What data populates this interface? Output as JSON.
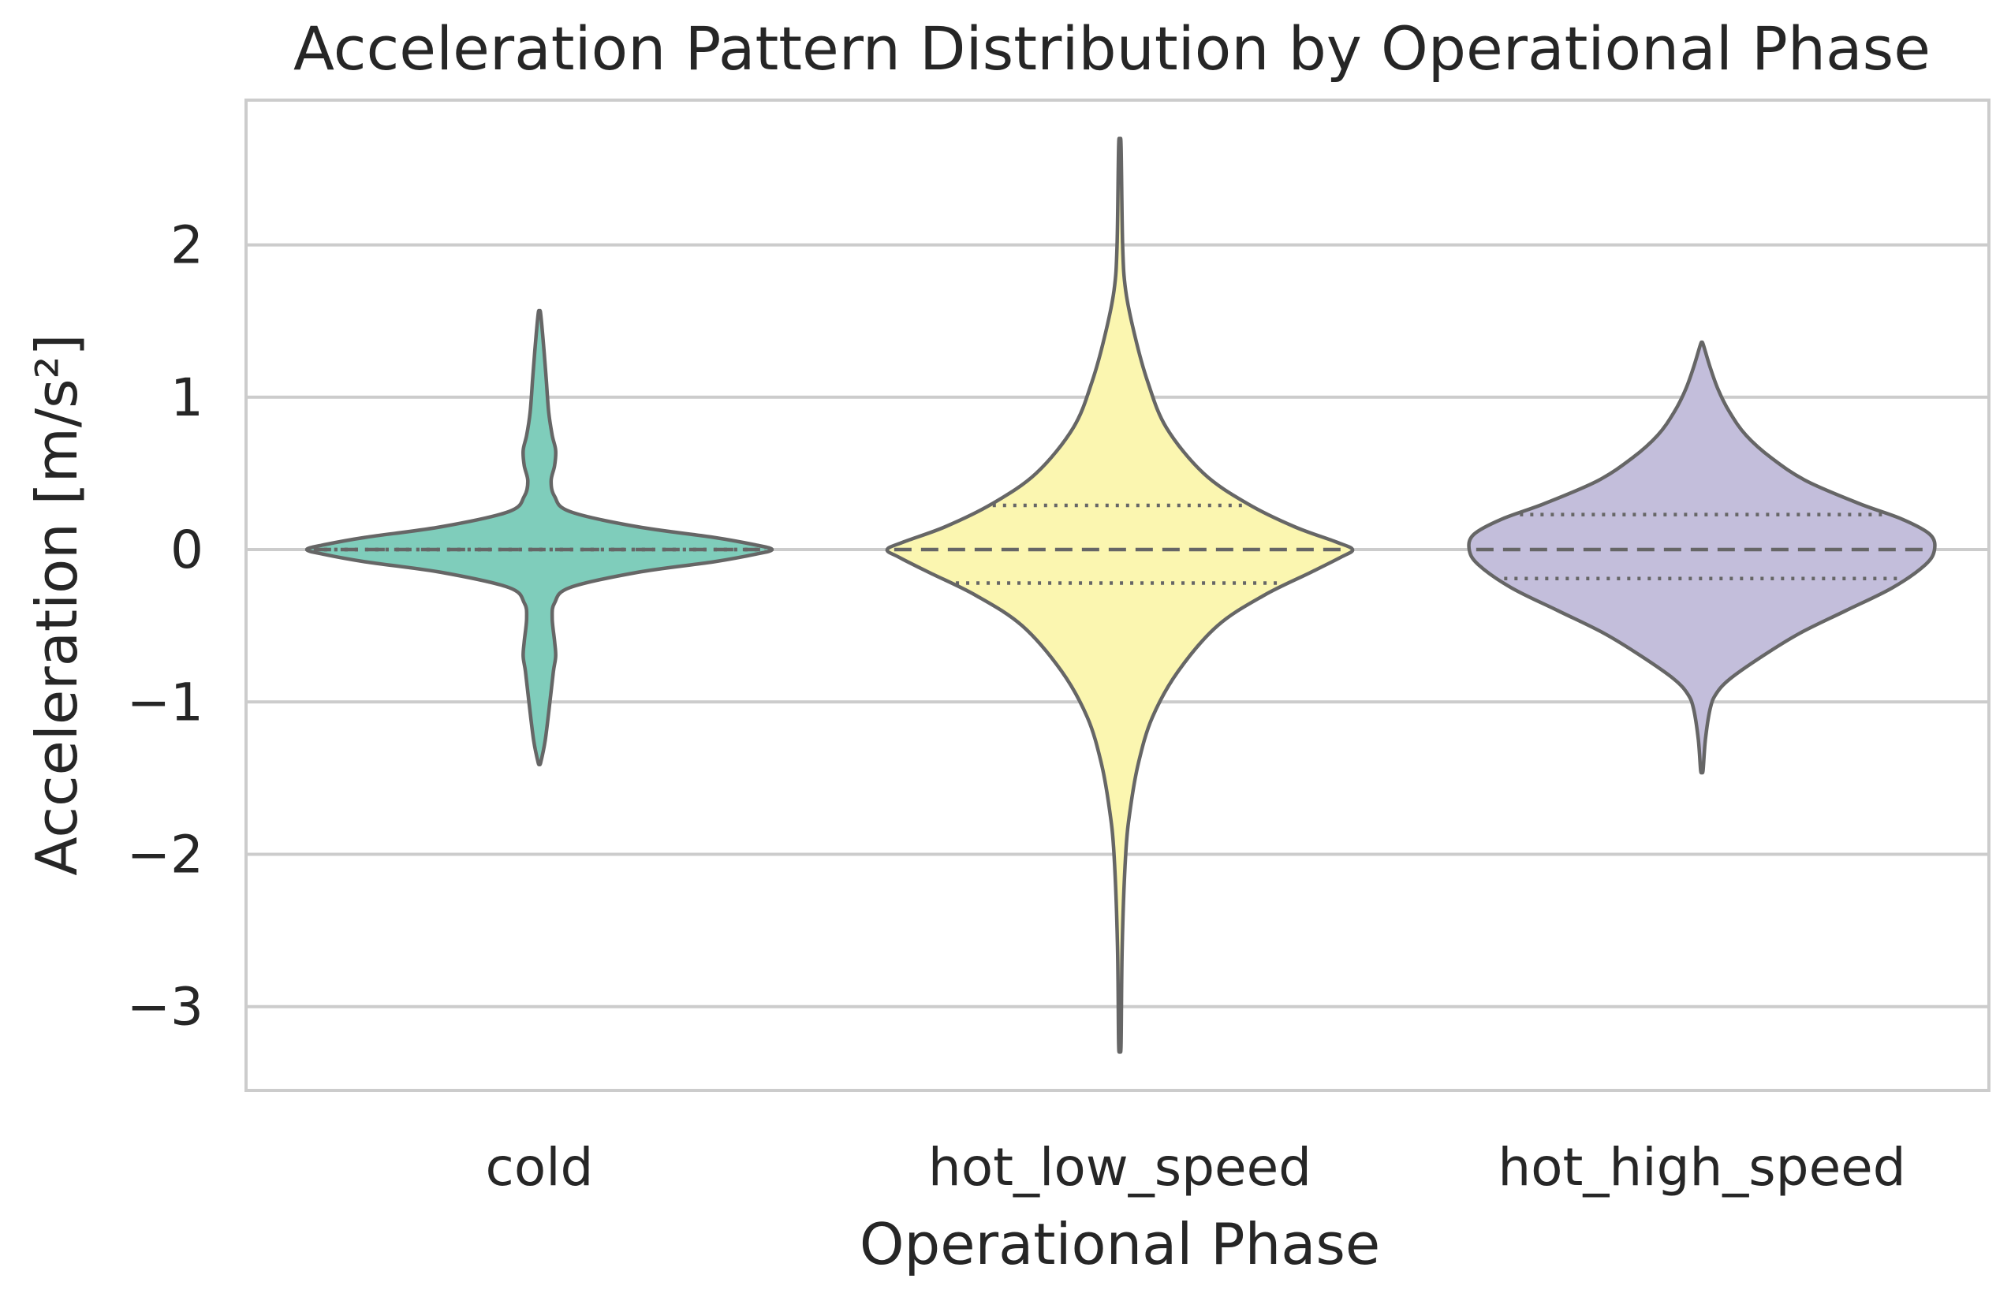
{
  "chart_data": {
    "type": "violin",
    "title": "Acceleration Pattern Distribution by Operational Phase",
    "xlabel": "Operational Phase",
    "ylabel": "Acceleration [m/s²]",
    "categories": [
      "cold",
      "hot_low_speed",
      "hot_high_speed"
    ],
    "ylim": [
      -3.55,
      2.95
    ],
    "yticks": [
      2,
      1,
      0,
      -1,
      -2,
      -3
    ],
    "ytick_labels": [
      "2",
      "1",
      "0",
      "−1",
      "−2",
      "−3"
    ],
    "grid": true,
    "inner": "quartile",
    "colors": [
      "#7fcdbb",
      "#fbf6b0",
      "#c3bedb"
    ],
    "line_color": "#666666",
    "series": [
      {
        "category": "cold",
        "min": -1.4,
        "max": 1.55,
        "q1": 0.0,
        "median": 0.0,
        "q3": 0.0,
        "profile": [
          [
            -1.4,
            0.005
          ],
          [
            -1.25,
            0.025
          ],
          [
            -1.0,
            0.045
          ],
          [
            -0.8,
            0.06
          ],
          [
            -0.7,
            0.07
          ],
          [
            -0.6,
            0.065
          ],
          [
            -0.45,
            0.055
          ],
          [
            -0.35,
            0.065
          ],
          [
            -0.25,
            0.13
          ],
          [
            -0.15,
            0.42
          ],
          [
            -0.08,
            0.75
          ],
          [
            -0.03,
            0.93
          ],
          [
            0.0,
            1.0
          ],
          [
            0.03,
            0.93
          ],
          [
            0.08,
            0.75
          ],
          [
            0.15,
            0.42
          ],
          [
            0.25,
            0.13
          ],
          [
            0.35,
            0.065
          ],
          [
            0.45,
            0.05
          ],
          [
            0.55,
            0.065
          ],
          [
            0.65,
            0.07
          ],
          [
            0.75,
            0.055
          ],
          [
            0.9,
            0.04
          ],
          [
            1.1,
            0.03
          ],
          [
            1.3,
            0.02
          ],
          [
            1.55,
            0.005
          ]
        ]
      },
      {
        "category": "hot_low_speed",
        "min": -3.25,
        "max": 2.65,
        "q1": -0.22,
        "median": 0.0,
        "q3": 0.29,
        "profile": [
          [
            -3.25,
            0.005
          ],
          [
            -2.6,
            0.01
          ],
          [
            -2.0,
            0.025
          ],
          [
            -1.7,
            0.045
          ],
          [
            -1.4,
            0.08
          ],
          [
            -1.1,
            0.14
          ],
          [
            -0.8,
            0.25
          ],
          [
            -0.5,
            0.42
          ],
          [
            -0.3,
            0.62
          ],
          [
            -0.15,
            0.82
          ],
          [
            -0.05,
            0.95
          ],
          [
            0.0,
            1.0
          ],
          [
            0.05,
            0.93
          ],
          [
            0.15,
            0.75
          ],
          [
            0.3,
            0.55
          ],
          [
            0.5,
            0.36
          ],
          [
            0.8,
            0.2
          ],
          [
            1.1,
            0.12
          ],
          [
            1.4,
            0.065
          ],
          [
            1.7,
            0.025
          ],
          [
            2.0,
            0.012
          ],
          [
            2.65,
            0.005
          ]
        ]
      },
      {
        "category": "hot_high_speed",
        "min": -1.45,
        "max": 1.35,
        "q1": -0.19,
        "median": 0.0,
        "q3": 0.23,
        "profile": [
          [
            -1.45,
            0.005
          ],
          [
            -1.25,
            0.015
          ],
          [
            -1.05,
            0.035
          ],
          [
            -0.95,
            0.06
          ],
          [
            -0.85,
            0.12
          ],
          [
            -0.7,
            0.26
          ],
          [
            -0.55,
            0.42
          ],
          [
            -0.4,
            0.62
          ],
          [
            -0.25,
            0.82
          ],
          [
            -0.1,
            0.96
          ],
          [
            0.0,
            1.0
          ],
          [
            0.1,
            0.98
          ],
          [
            0.2,
            0.86
          ],
          [
            0.3,
            0.68
          ],
          [
            0.45,
            0.45
          ],
          [
            0.6,
            0.3
          ],
          [
            0.75,
            0.19
          ],
          [
            0.9,
            0.12
          ],
          [
            1.05,
            0.07
          ],
          [
            1.2,
            0.035
          ],
          [
            1.35,
            0.005
          ]
        ]
      }
    ]
  }
}
